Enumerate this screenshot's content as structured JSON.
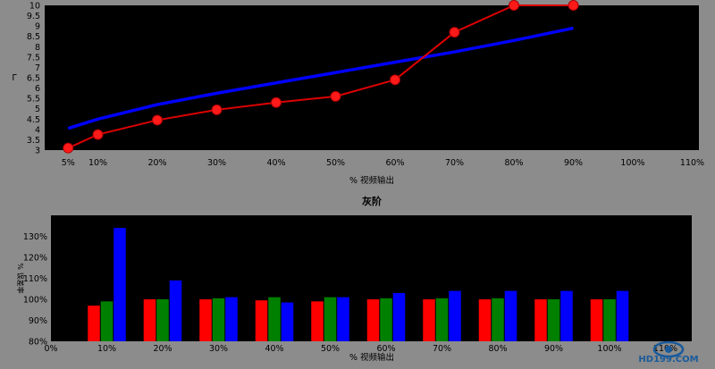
{
  "chart_data": [
    {
      "type": "line",
      "title": "",
      "xlabel": "% 视频输出",
      "ylabel": "Γ",
      "xlim": [
        0,
        110
      ],
      "ylim": [
        3,
        10
      ],
      "x_ticks": [
        5,
        10,
        20,
        30,
        40,
        50,
        60,
        70,
        80,
        90,
        100,
        110
      ],
      "x_tick_labels": [
        "5%",
        "10%",
        "20%",
        "30%",
        "40%",
        "50%",
        "60%",
        "70%",
        "80%",
        "90%",
        "100%",
        "110%"
      ],
      "y_ticks": [
        3,
        3.5,
        4,
        4.5,
        5,
        5.5,
        6,
        6.5,
        7,
        7.5,
        8,
        8.5,
        9,
        9.5,
        10
      ],
      "y_tick_labels": [
        "3",
        "3.5",
        "4",
        "4.5",
        "5",
        "5.5",
        "6",
        "6.5",
        "7",
        "7.5",
        "8",
        "8.5",
        "9",
        "9.5",
        "10"
      ],
      "grid": false,
      "series": [
        {
          "color": "#0000ff",
          "marker": "none",
          "x": [
            5,
            10,
            20,
            30,
            40,
            50,
            60,
            70,
            80,
            90
          ],
          "y": [
            4.05,
            4.5,
            5.2,
            5.75,
            6.25,
            6.75,
            7.25,
            7.75,
            8.3,
            8.9
          ]
        },
        {
          "color": "#dd0000",
          "marker": "circle",
          "x": [
            5,
            10,
            20,
            30,
            40,
            50,
            60,
            70,
            80,
            90
          ],
          "y": [
            3.1,
            3.75,
            4.45,
            4.95,
            5.3,
            5.6,
            6.4,
            8.7,
            10.0,
            10.0
          ]
        }
      ]
    },
    {
      "type": "bar",
      "title": "灰阶",
      "xlabel": "% 视频输出",
      "ylabel": "% 误差率",
      "ylim": [
        80,
        140
      ],
      "y_ticks": [
        80,
        90,
        100,
        110,
        120,
        130
      ],
      "y_tick_labels": [
        "80%",
        "90%",
        "100%",
        "110%",
        "120%",
        "130%"
      ],
      "x_tick_labels": [
        "0%",
        "10%",
        "20%",
        "30%",
        "40%",
        "50%",
        "60%",
        "70%",
        "80%",
        "90%",
        "100%",
        "110%"
      ],
      "categories": [
        "10%",
        "20%",
        "30%",
        "40%",
        "50%",
        "60%",
        "70%",
        "80%",
        "90%",
        "100%"
      ],
      "grid": false,
      "series": [
        {
          "color": "#ff0000",
          "values": [
            97,
            100,
            100,
            99.5,
            99,
            100,
            100,
            100,
            100,
            100
          ]
        },
        {
          "color": "#008000",
          "values": [
            99,
            100,
            100.5,
            101,
            101,
            100.5,
            100.5,
            100.5,
            100,
            100
          ]
        },
        {
          "color": "#0000ff",
          "values": [
            134,
            109,
            101,
            98.5,
            101,
            103,
            104,
            104,
            104,
            104
          ]
        }
      ]
    }
  ],
  "logo": {
    "text": "HD199.COM",
    "color": "#1a5a9a"
  }
}
